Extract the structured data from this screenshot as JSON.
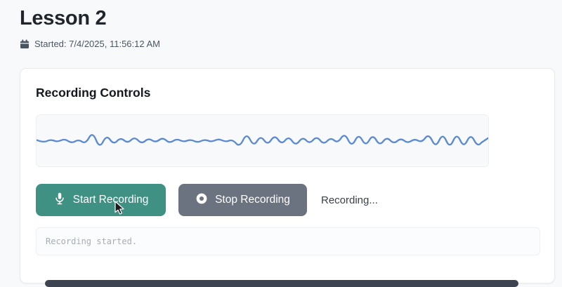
{
  "page": {
    "title": "Lesson 2",
    "meta": {
      "icon": "calendar-icon",
      "started": "Started: 7/4/2025, 11:56:12 AM"
    }
  },
  "card": {
    "title": "Recording Controls",
    "buttons": {
      "start": {
        "label": "Start Recording",
        "icon": "microphone-icon",
        "color": "#3f9183"
      },
      "stop": {
        "label": "Stop Recording",
        "icon": "record-dot-icon",
        "color": "#6b7280"
      }
    },
    "status_inline": "Recording...",
    "log_message": "Recording started."
  },
  "waveform": {
    "color": "#5b8ad2",
    "stroke_width": 2.4,
    "step": 10,
    "baseline": 38,
    "offsets": [
      1,
      -3,
      2,
      -2,
      3,
      -4,
      2,
      -5,
      14,
      -12,
      9,
      -6,
      5,
      -4,
      6,
      -5,
      4,
      -3,
      5,
      -4,
      3,
      -2,
      2,
      -3,
      2,
      -2,
      3,
      -2,
      2,
      -10,
      12,
      -9,
      8,
      -7,
      9,
      -6,
      7,
      -8,
      6,
      -5,
      7,
      -6,
      5,
      -4,
      12,
      -10,
      11,
      -9,
      10,
      -8,
      6,
      -5,
      4,
      -4,
      3,
      -3,
      11,
      -11,
      12,
      -12,
      12,
      -11,
      11,
      -10,
      4
    ]
  }
}
